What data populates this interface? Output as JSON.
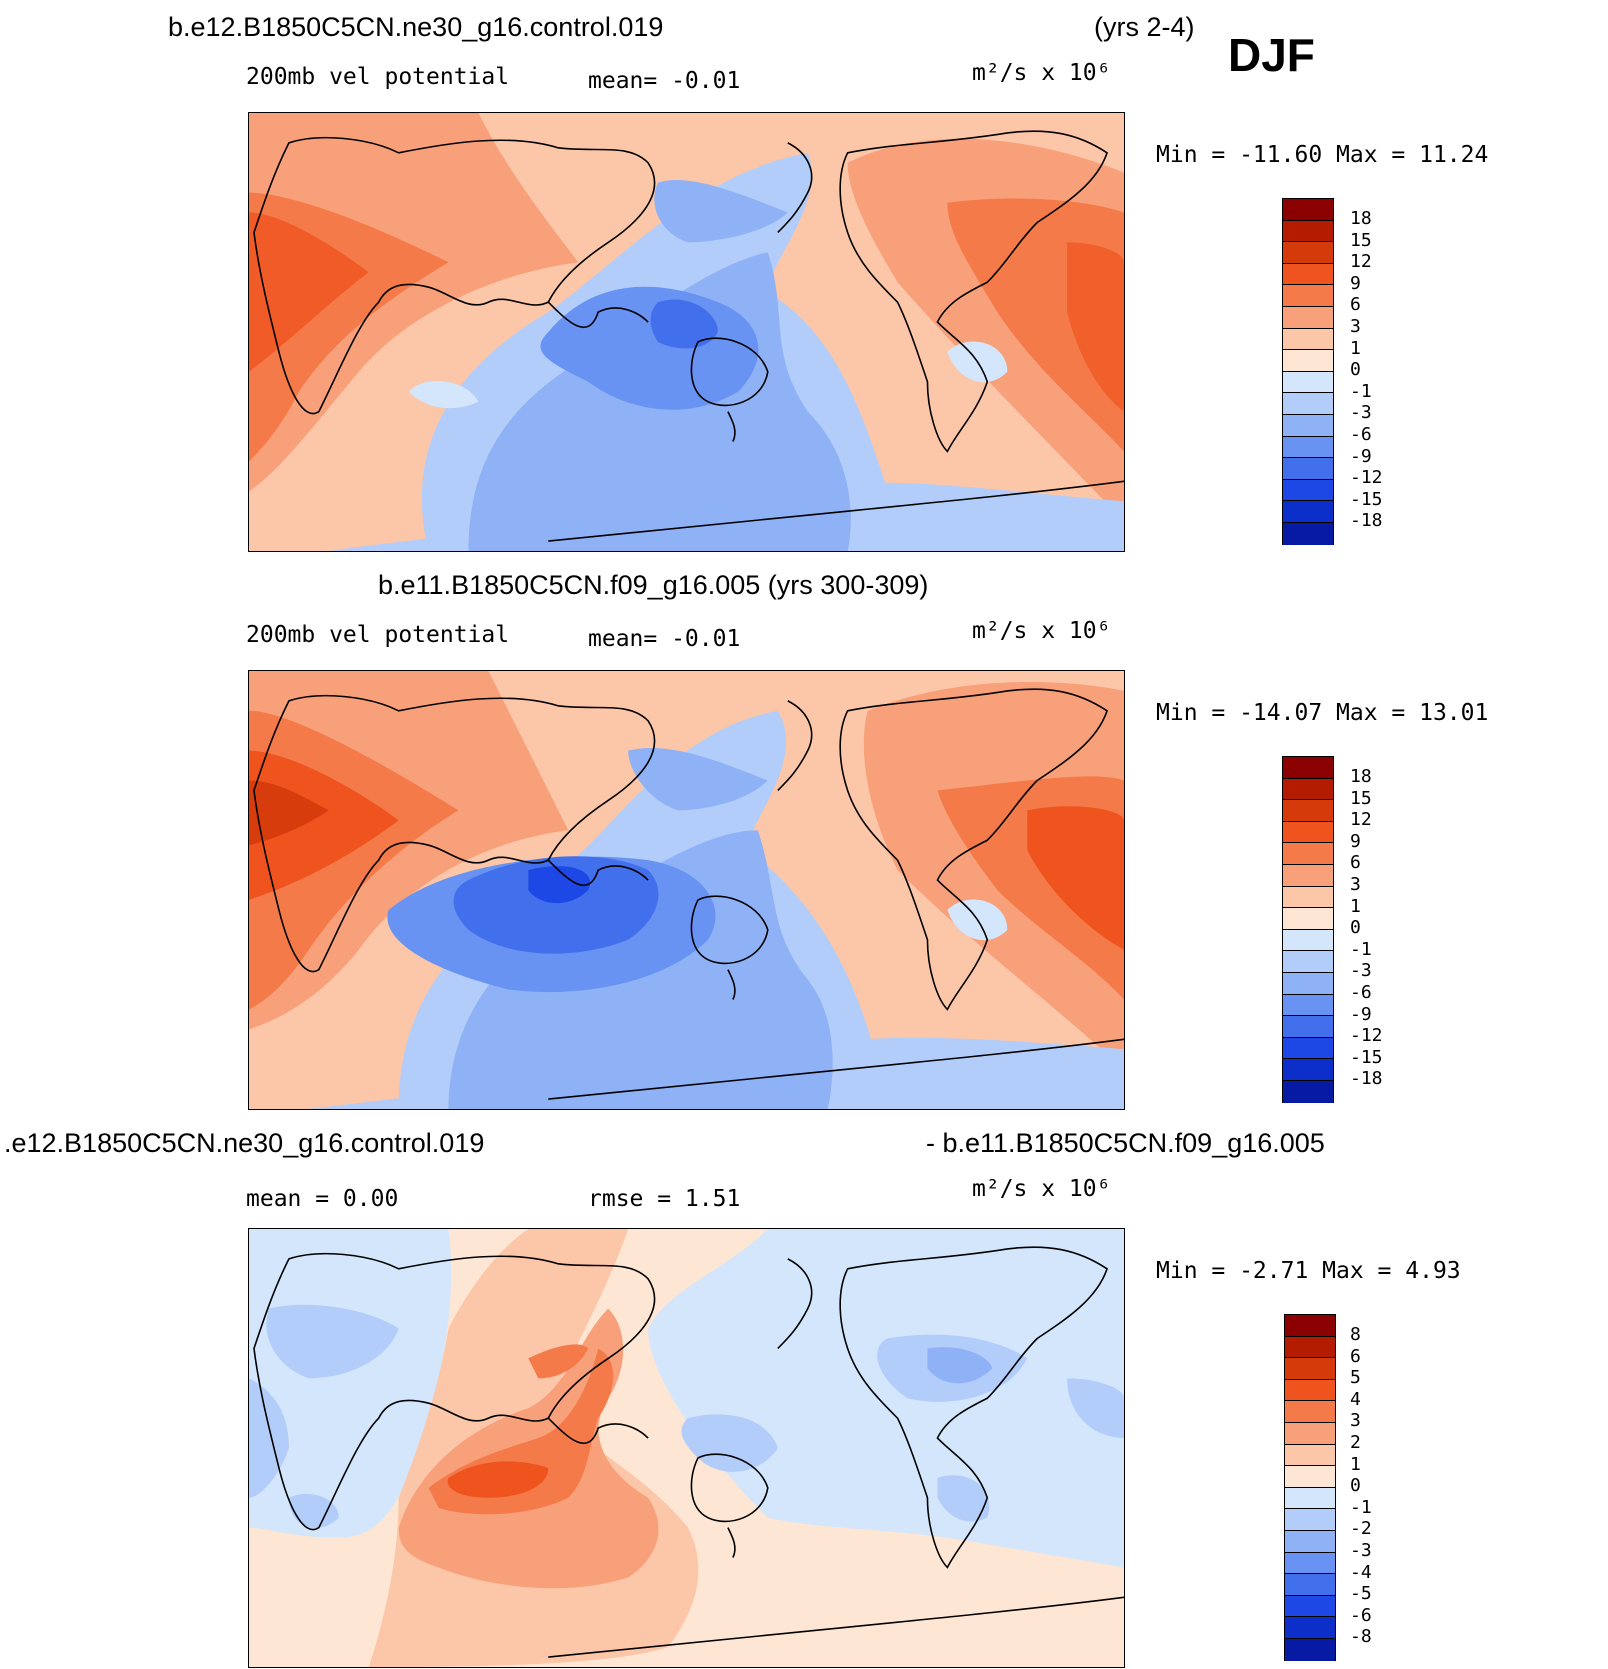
{
  "season": "DJF",
  "panels": [
    {
      "title_left": "b.e12.B1850C5CN.ne30_g16.control.019",
      "title_right": "(yrs 2-4)",
      "variable": "200mb vel potential",
      "stat1": "mean=   -0.01",
      "stat2": "",
      "units": "m²/s x 10⁶",
      "minmax": "Min = -11.60 Max =  11.24",
      "levels": [
        "18",
        "15",
        "12",
        "9",
        "6",
        "3",
        "1",
        "0",
        "-1",
        "-3",
        "-6",
        "-9",
        "-12",
        "-15",
        "-18"
      ],
      "colors": [
        "#8b0000",
        "#b31c00",
        "#d43a0a",
        "#f0541e",
        "#f47a4a",
        "#f8a07a",
        "#fcc6a8",
        "#fee6d4",
        "#d4e6fb",
        "#b2cdf9",
        "#8fb2f6",
        "#6993f2",
        "#4270ed",
        "#1d48e6",
        "#0c2fca",
        "#061aa3",
        "#00067a"
      ]
    },
    {
      "title_left": "b.e11.B1850C5CN.f09_g16.005 (yrs 300-309)",
      "title_right": "",
      "variable": "200mb vel potential",
      "stat1": "mean=   -0.01",
      "stat2": "",
      "units": "m²/s x 10⁶",
      "minmax": "Min = -14.07 Max =  13.01",
      "levels": [
        "18",
        "15",
        "12",
        "9",
        "6",
        "3",
        "1",
        "0",
        "-1",
        "-3",
        "-6",
        "-9",
        "-12",
        "-15",
        "-18"
      ],
      "colors": [
        "#8b0000",
        "#b31c00",
        "#d43a0a",
        "#f0541e",
        "#f47a4a",
        "#f8a07a",
        "#fcc6a8",
        "#fee6d4",
        "#d4e6fb",
        "#b2cdf9",
        "#8fb2f6",
        "#6993f2",
        "#4270ed",
        "#1d48e6",
        "#0c2fca",
        "#061aa3",
        "#00067a"
      ]
    },
    {
      "title_left": ".e12.B1850C5CN.ne30_g16.control.019",
      "title_right": "- b.e11.B1850C5CN.f09_g16.005",
      "variable": "",
      "stat1": "mean =    0.00",
      "stat2": "rmse =    1.51",
      "units": "m²/s x 10⁶",
      "minmax": "Min =  -2.71 Max =   4.93",
      "levels": [
        "8",
        "6",
        "5",
        "4",
        "3",
        "2",
        "1",
        "0",
        "-1",
        "-2",
        "-3",
        "-4",
        "-5",
        "-6",
        "-8"
      ],
      "colors": [
        "#8b0000",
        "#b31c00",
        "#d43a0a",
        "#f0541e",
        "#f47a4a",
        "#f8a07a",
        "#fcc6a8",
        "#fee6d4",
        "#d4e6fb",
        "#b2cdf9",
        "#8fb2f6",
        "#6993f2",
        "#4270ed",
        "#1d48e6",
        "#0c2fca",
        "#061aa3",
        "#00067a"
      ]
    }
  ]
}
